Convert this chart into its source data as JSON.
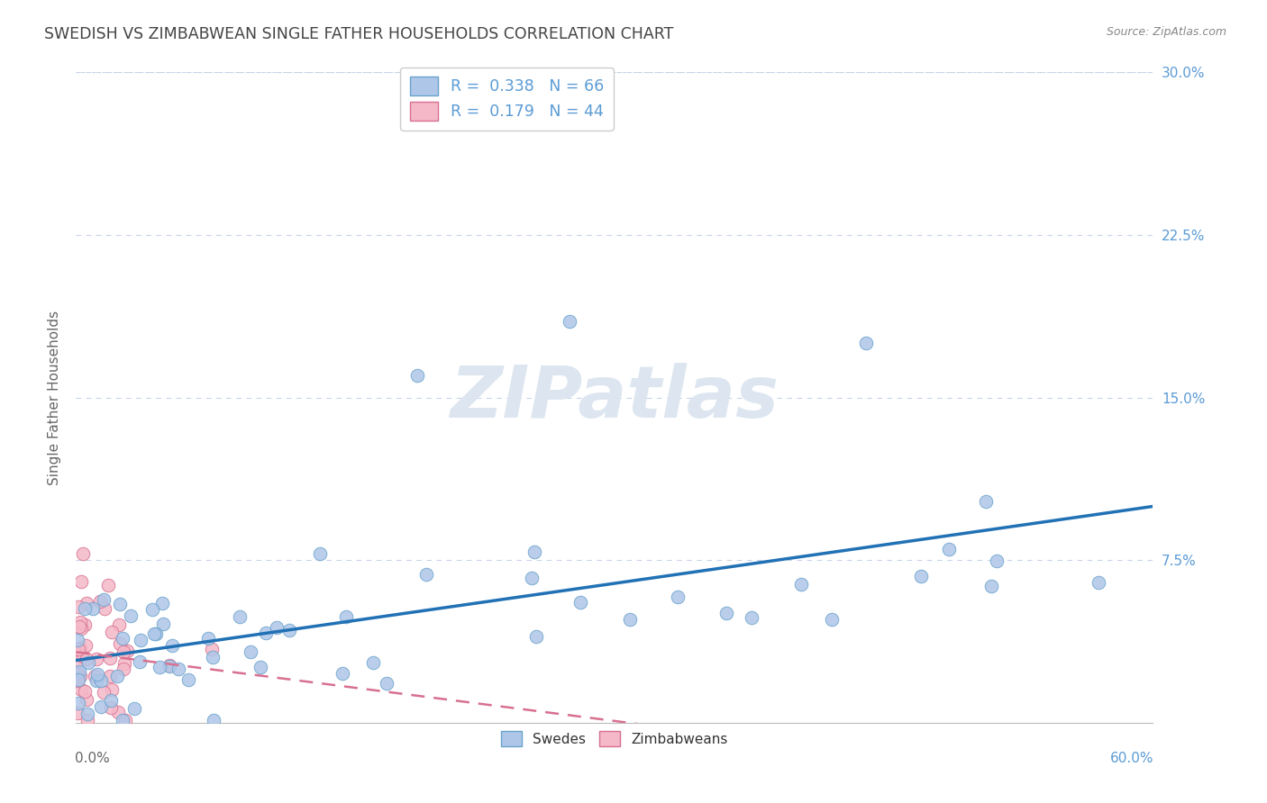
{
  "title": "SWEDISH VS ZIMBABWEAN SINGLE FATHER HOUSEHOLDS CORRELATION CHART",
  "source": "Source: ZipAtlas.com",
  "ylabel": "Single Father Households",
  "xmin": 0.0,
  "xmax": 0.6,
  "ymin": 0.0,
  "ymax": 0.3,
  "swedes_R": 0.338,
  "swedes_N": 66,
  "zimbabweans_R": 0.179,
  "zimbabweans_N": 44,
  "blue_color": "#aec6e8",
  "blue_edge": "#6aa3cc",
  "pink_color": "#f4b8c8",
  "pink_edge": "#d87090",
  "blue_line_color": "#2171b5",
  "pink_line_color": "#d87090",
  "background_color": "#ffffff",
  "grid_color": "#c8d4e8",
  "watermark_text": "ZIPatlas",
  "watermark_color": "#dde6f0",
  "legend_swedes": "Swedes",
  "legend_zim": "Zimbabweans",
  "title_color": "#444444",
  "source_color": "#888888",
  "ylabel_color": "#666666",
  "ytick_color": "#5b9bd5",
  "xtick_label_left_color": "#666666",
  "xtick_label_right_color": "#5b9bd5"
}
